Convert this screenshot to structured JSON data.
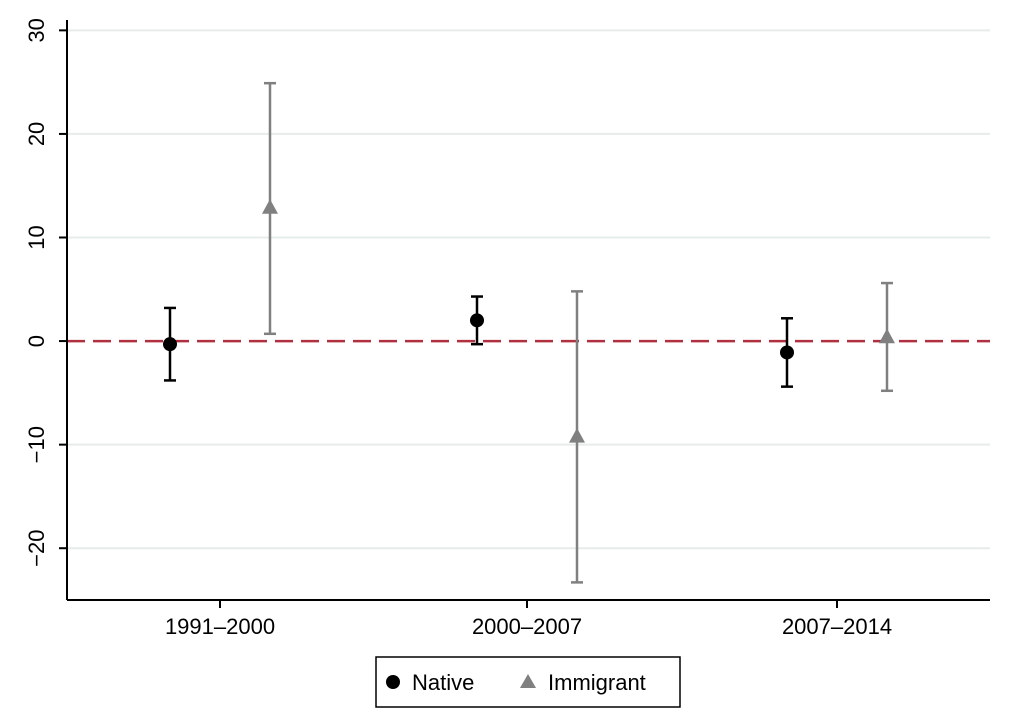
{
  "chart_data": {
    "type": "scatter",
    "subtype": "coefficient-plot-with-error-bars",
    "title": "",
    "xlabel": "",
    "ylabel": "",
    "categories": [
      "1991–2000",
      "2000–2007",
      "2007–2014"
    ],
    "ylim": [
      -25,
      31
    ],
    "yticks": [
      30,
      20,
      10,
      0,
      -10,
      -20
    ],
    "ytick_labels": [
      "30",
      "20",
      "10",
      "0",
      "−10",
      "−20"
    ],
    "grid": true,
    "reference_line": {
      "y": 0,
      "style": "dashed",
      "color": "#b0303f"
    },
    "legend": {
      "placement": "bottom-center"
    },
    "series": [
      {
        "name": "Native",
        "marker": "circle",
        "color": "#000000",
        "values": [
          -0.3,
          2.0,
          -1.1
        ],
        "lower": [
          -3.8,
          -0.3,
          -4.4
        ],
        "upper": [
          3.2,
          4.3,
          2.2
        ]
      },
      {
        "name": "Immigrant",
        "marker": "triangle",
        "color": "#808080",
        "values": [
          12.9,
          -9.2,
          0.4
        ],
        "lower": [
          0.7,
          -23.3,
          -4.8
        ],
        "upper": [
          24.9,
          4.8,
          5.6
        ]
      }
    ]
  }
}
